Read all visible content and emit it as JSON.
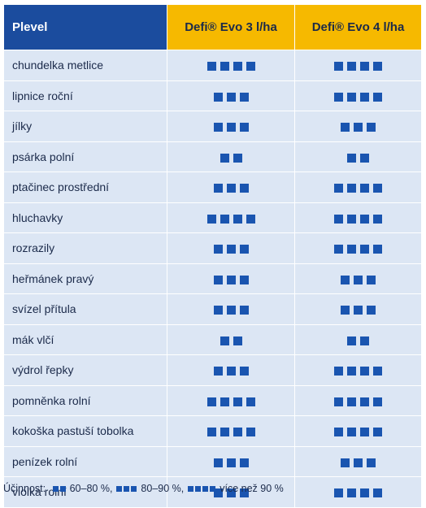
{
  "table": {
    "header": [
      "Plevel",
      "Defi® Evo 3 l/ha",
      "Defi® Evo 4 l/ha"
    ],
    "rows": [
      [
        "chundelka metlice",
        4,
        4
      ],
      [
        "lipnice roční",
        3,
        4
      ],
      [
        "jílky",
        3,
        3
      ],
      [
        "psárka polní",
        2,
        2
      ],
      [
        "ptačinec prostřední",
        3,
        4
      ],
      [
        "hluchavky",
        4,
        4
      ],
      [
        "rozrazily",
        3,
        4
      ],
      [
        "heřmánek pravý",
        3,
        3
      ],
      [
        "svízel přítula",
        3,
        3
      ],
      [
        "mák vlčí",
        2,
        2
      ],
      [
        "výdrol řepky",
        3,
        4
      ],
      [
        "pomněnka rolní",
        4,
        4
      ],
      [
        "kokoška pastuší tobolka",
        4,
        4
      ],
      [
        "penízek rolní",
        3,
        3
      ],
      [
        "violka rolní",
        3,
        4
      ]
    ]
  },
  "legend": {
    "title": "Účinnost:",
    "items": [
      {
        "count": 2,
        "label": "60–80 %,"
      },
      {
        "count": 3,
        "label": "80–90 %,"
      },
      {
        "count": 4,
        "label": "více než 90 %"
      }
    ]
  }
}
